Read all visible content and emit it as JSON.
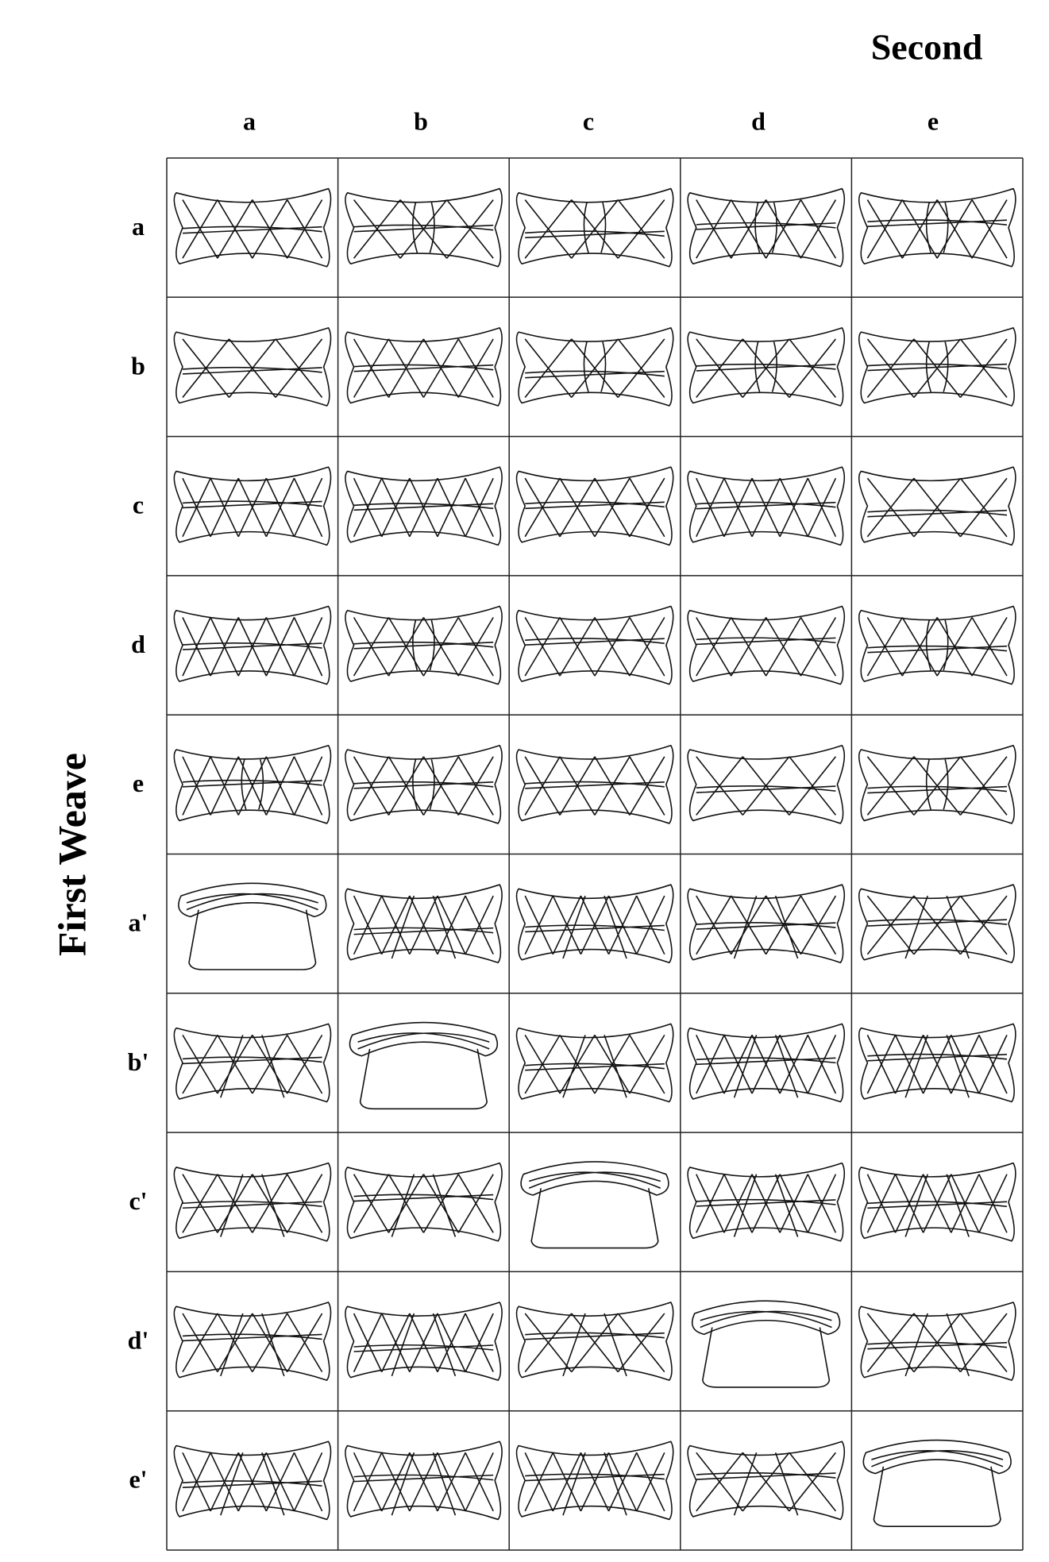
{
  "header": {
    "title": "Second"
  },
  "side_title": "First Weave",
  "columns": [
    "a",
    "b",
    "c",
    "d",
    "e"
  ],
  "rows": [
    "a",
    "b",
    "c",
    "d",
    "e",
    "a'",
    "b'",
    "c'",
    "d'",
    "e'"
  ]
}
